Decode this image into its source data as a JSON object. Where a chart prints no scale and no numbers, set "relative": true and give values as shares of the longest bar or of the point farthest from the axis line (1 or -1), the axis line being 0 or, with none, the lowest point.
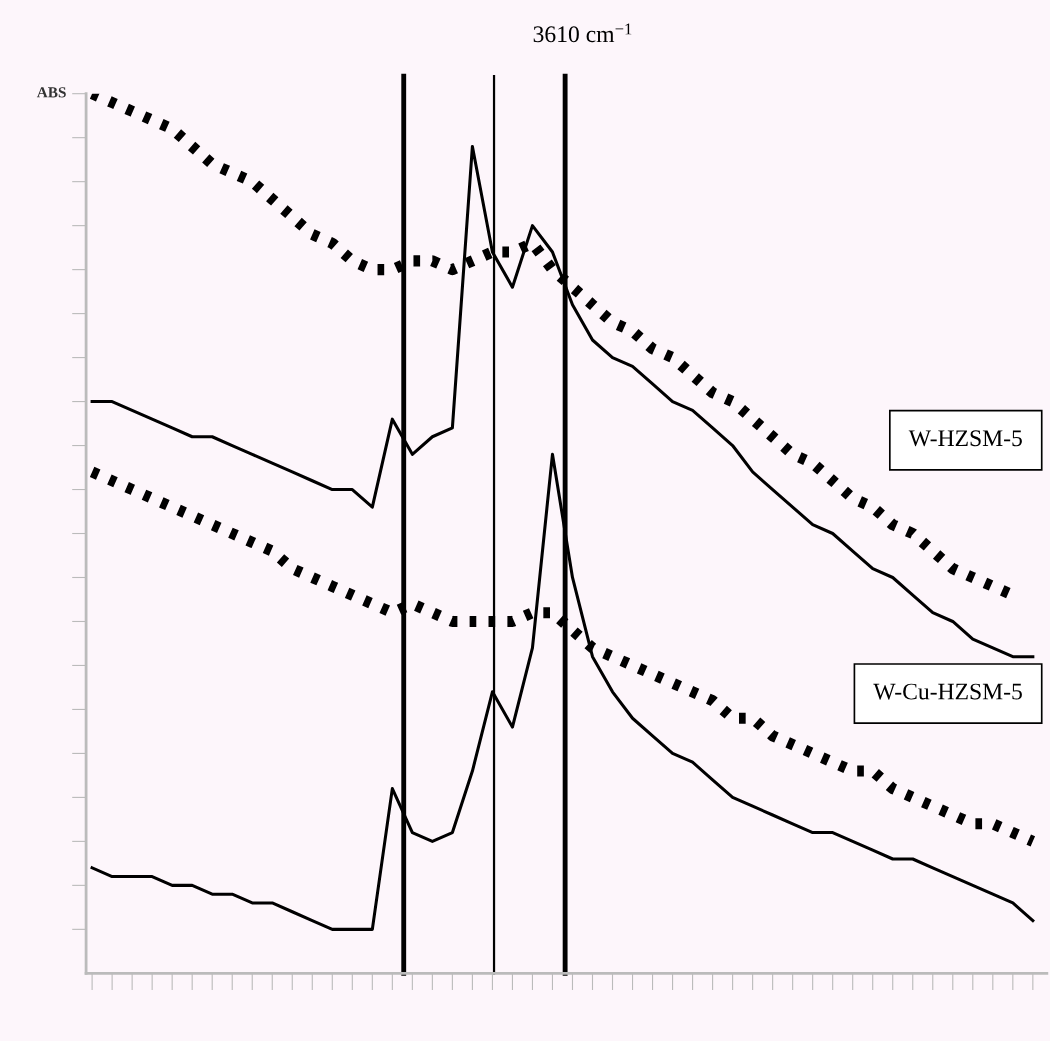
{
  "chart_data": {
    "type": "line",
    "relative": true,
    "title": "3610 cm$^{−1}$",
    "ylabel": "ABS",
    "grid": false,
    "categories": [
      null,
      null,
      null,
      null,
      null,
      null,
      null,
      null,
      null,
      null,
      null,
      null,
      null,
      null,
      null,
      null,
      null,
      null,
      null,
      null,
      null,
      null,
      null,
      null,
      null,
      null,
      null,
      null,
      null,
      null,
      null,
      null,
      null,
      null,
      null,
      null,
      null,
      null,
      null,
      null,
      null,
      null,
      null,
      null,
      null,
      null,
      null,
      null
    ],
    "series": [
      {
        "color": "#000000",
        "line_style": "dotted",
        "values": [
          1.0,
          0.99,
          0.98,
          0.97,
          0.96,
          0.94,
          0.92,
          0.91,
          0.9,
          0.88,
          0.86,
          0.84,
          0.83,
          0.81,
          0.8,
          0.8,
          0.81,
          0.81,
          0.8,
          0.81,
          0.82,
          0.82,
          0.83,
          0.8,
          0.78,
          0.76,
          0.74,
          0.73,
          0.71,
          0.7,
          0.68,
          0.66,
          0.65,
          0.63,
          0.61,
          0.59,
          0.58,
          0.56,
          0.54,
          0.53,
          0.51,
          0.5,
          0.48,
          0.46,
          0.45,
          0.44,
          0.43,
          null
        ]
      },
      {
        "color": "#000000",
        "line_style": "solid",
        "values": [
          0.65,
          0.65,
          0.64,
          0.63,
          0.62,
          0.61,
          0.61,
          0.6,
          0.59,
          0.58,
          0.57,
          0.56,
          0.55,
          0.55,
          0.53,
          0.63,
          0.59,
          0.61,
          0.62,
          0.94,
          0.82,
          0.78,
          0.85,
          0.82,
          0.76,
          0.72,
          0.7,
          0.69,
          0.67,
          0.65,
          0.64,
          0.62,
          0.6,
          0.57,
          0.55,
          0.53,
          0.51,
          0.5,
          0.48,
          0.46,
          0.45,
          0.43,
          0.41,
          0.4,
          0.38,
          0.37,
          0.36,
          0.36
        ]
      },
      {
        "color": "#000000",
        "line_style": "dotted",
        "values": [
          0.57,
          0.56,
          0.55,
          0.54,
          0.53,
          0.52,
          0.51,
          0.5,
          0.49,
          0.48,
          0.46,
          0.45,
          0.44,
          0.43,
          0.42,
          0.41,
          0.42,
          0.41,
          0.4,
          0.4,
          0.4,
          0.4,
          0.41,
          0.41,
          0.39,
          0.37,
          0.36,
          0.35,
          0.34,
          0.33,
          0.32,
          0.31,
          0.29,
          0.29,
          0.27,
          0.26,
          0.25,
          0.24,
          0.23,
          0.23,
          0.21,
          0.2,
          0.19,
          0.18,
          0.17,
          0.17,
          0.16,
          0.15
        ]
      },
      {
        "color": "#000000",
        "line_style": "solid",
        "values": [
          0.12,
          0.11,
          0.11,
          0.11,
          0.1,
          0.1,
          0.09,
          0.09,
          0.08,
          0.08,
          0.07,
          0.06,
          0.05,
          0.05,
          0.05,
          0.21,
          0.16,
          0.15,
          0.16,
          0.23,
          0.32,
          0.28,
          0.37,
          0.59,
          0.45,
          0.36,
          0.32,
          0.29,
          0.27,
          0.25,
          0.24,
          0.22,
          0.2,
          0.19,
          0.18,
          0.17,
          0.16,
          0.16,
          0.15,
          0.14,
          0.13,
          0.13,
          0.12,
          0.11,
          0.1,
          0.09,
          0.08,
          0.06
        ]
      }
    ],
    "annotations": [
      "W-HZSM-5",
      "W-Cu-HZSM-5"
    ]
  }
}
